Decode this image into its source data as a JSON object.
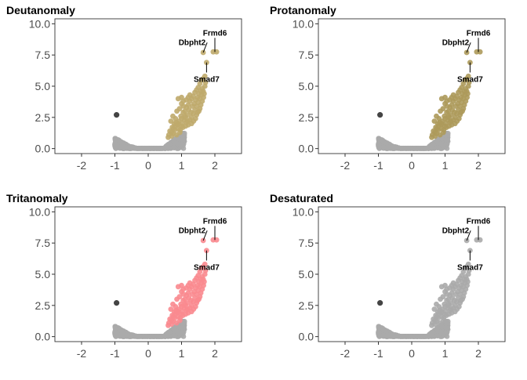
{
  "chart_data": [
    {
      "type": "scatter",
      "title": "Deutanomaly",
      "xlabel": "",
      "ylabel": "",
      "xlim": [
        -2.8,
        2.8
      ],
      "ylim": [
        0,
        10
      ],
      "x_ticks": [
        -2,
        -1,
        0,
        1,
        2
      ],
      "x_tick_labels": [
        "-2",
        "-1",
        "0",
        "1",
        "2"
      ],
      "y_ticks": [
        0,
        2.5,
        5,
        7.5,
        10
      ],
      "y_tick_labels": [
        "0.0",
        "2.5",
        "5.0",
        "7.5",
        "10.0"
      ],
      "grid": false,
      "colors": {
        "significant": "#bfaa6b",
        "background": "#aaaaaa",
        "outlier": "#444444"
      },
      "labels": [
        {
          "text": "Frmd6",
          "x": 2.0,
          "y": 7.75,
          "label_x": 2.0,
          "label_y": 9.25
        },
        {
          "text": "Dbpht2",
          "x": 1.65,
          "y": 7.7,
          "label_x": 0.78,
          "label_y": 8.5
        },
        {
          "text": "Smad7",
          "x": 1.75,
          "y": 6.9,
          "label_x": 1.75,
          "label_y": 6.1
        }
      ]
    },
    {
      "type": "scatter",
      "title": "Protanomaly",
      "xlabel": "",
      "ylabel": "",
      "xlim": [
        -2.8,
        2.8
      ],
      "ylim": [
        0,
        10
      ],
      "x_ticks": [
        -2,
        -1,
        0,
        1,
        2
      ],
      "x_tick_labels": [
        "-2",
        "-1",
        "0",
        "1",
        "2"
      ],
      "y_ticks": [
        0,
        2.5,
        5,
        7.5,
        10
      ],
      "y_tick_labels": [
        "0.0",
        "2.5",
        "5.0",
        "7.5",
        "10.0"
      ],
      "grid": false,
      "colors": {
        "significant": "#ad9a5b",
        "background": "#aaaaaa",
        "outlier": "#444444"
      },
      "labels": [
        {
          "text": "Frmd6",
          "x": 2.0,
          "y": 7.75,
          "label_x": 2.0,
          "label_y": 9.25
        },
        {
          "text": "Dbpht2",
          "x": 1.65,
          "y": 7.7,
          "label_x": 0.78,
          "label_y": 8.5
        },
        {
          "text": "Smad7",
          "x": 1.75,
          "y": 6.9,
          "label_x": 1.75,
          "label_y": 6.1
        }
      ]
    },
    {
      "type": "scatter",
      "title": "Tritanomaly",
      "xlabel": "",
      "ylabel": "",
      "xlim": [
        -2.8,
        2.8
      ],
      "ylim": [
        0,
        10
      ],
      "x_ticks": [
        -2,
        -1,
        0,
        1,
        2
      ],
      "x_tick_labels": [
        "-2",
        "-1",
        "0",
        "1",
        "2"
      ],
      "y_ticks": [
        0,
        2.5,
        5,
        7.5,
        10
      ],
      "y_tick_labels": [
        "0.0",
        "2.5",
        "5.0",
        "7.5",
        "10.0"
      ],
      "grid": false,
      "colors": {
        "significant": "#f98a8f",
        "background": "#aaaaaa",
        "outlier": "#444444"
      },
      "labels": [
        {
          "text": "Frmd6",
          "x": 2.0,
          "y": 7.75,
          "label_x": 2.0,
          "label_y": 9.25
        },
        {
          "text": "Dbpht2",
          "x": 1.65,
          "y": 7.7,
          "label_x": 0.78,
          "label_y": 8.5
        },
        {
          "text": "Smad7",
          "x": 1.75,
          "y": 6.9,
          "label_x": 1.75,
          "label_y": 6.1
        }
      ]
    },
    {
      "type": "scatter",
      "title": "Desaturated",
      "xlabel": "",
      "ylabel": "",
      "xlim": [
        -2.8,
        2.8
      ],
      "ylim": [
        0,
        10
      ],
      "x_ticks": [
        -2,
        -1,
        0,
        1,
        2
      ],
      "x_tick_labels": [
        "-2",
        "-1",
        "0",
        "1",
        "2"
      ],
      "y_ticks": [
        0,
        2.5,
        5,
        7.5,
        10
      ],
      "y_tick_labels": [
        "0.0",
        "2.5",
        "5.0",
        "7.5",
        "10.0"
      ],
      "grid": false,
      "colors": {
        "significant": "#aaaaaa",
        "background": "#aaaaaa",
        "outlier": "#444444"
      },
      "labels": [
        {
          "text": "Frmd6",
          "x": 2.0,
          "y": 7.75,
          "label_x": 2.0,
          "label_y": 9.25
        },
        {
          "text": "Dbpht2",
          "x": 1.65,
          "y": 7.7,
          "label_x": 0.78,
          "label_y": 8.5
        },
        {
          "text": "Smad7",
          "x": 1.75,
          "y": 6.9,
          "label_x": 1.75,
          "label_y": 6.1
        }
      ]
    }
  ],
  "points": {
    "outlier": [
      [
        -0.95,
        2.7
      ]
    ],
    "significant": [
      [
        0.6,
        0.9
      ],
      [
        0.7,
        1.0
      ],
      [
        0.75,
        1.2
      ],
      [
        0.8,
        1.5
      ],
      [
        0.85,
        1.1
      ],
      [
        0.9,
        1.6
      ],
      [
        0.95,
        1.3
      ],
      [
        1.0,
        1.8
      ],
      [
        0.65,
        1.4
      ],
      [
        0.72,
        1.7
      ],
      [
        0.78,
        2.0
      ],
      [
        0.82,
        2.4
      ],
      [
        0.88,
        1.9
      ],
      [
        0.92,
        2.2
      ],
      [
        0.98,
        2.6
      ],
      [
        1.02,
        2.0
      ],
      [
        1.05,
        2.9
      ],
      [
        1.08,
        2.3
      ],
      [
        1.1,
        3.0
      ],
      [
        1.12,
        2.5
      ],
      [
        1.15,
        3.3
      ],
      [
        1.18,
        2.7
      ],
      [
        1.2,
        3.5
      ],
      [
        1.22,
        3.1
      ],
      [
        1.25,
        3.8
      ],
      [
        1.28,
        2.9
      ],
      [
        1.3,
        4.0
      ],
      [
        1.32,
        3.4
      ],
      [
        1.35,
        4.2
      ],
      [
        1.38,
        3.6
      ],
      [
        1.4,
        4.5
      ],
      [
        1.42,
        3.9
      ],
      [
        1.45,
        4.7
      ],
      [
        1.48,
        4.1
      ],
      [
        1.5,
        4.9
      ],
      [
        1.52,
        4.4
      ],
      [
        1.55,
        5.2
      ],
      [
        1.58,
        4.6
      ],
      [
        1.6,
        5.5
      ],
      [
        1.62,
        4.8
      ],
      [
        1.65,
        5.6
      ],
      [
        1.7,
        5.8
      ],
      [
        1.75,
        6.9
      ],
      [
        1.65,
        7.7
      ],
      [
        1.95,
        7.75
      ],
      [
        2.05,
        7.75
      ],
      [
        0.68,
        2.2
      ],
      [
        0.74,
        2.6
      ],
      [
        0.86,
        3.0
      ],
      [
        0.94,
        3.2
      ],
      [
        1.0,
        3.6
      ],
      [
        1.06,
        3.4
      ],
      [
        1.14,
        3.9
      ],
      [
        1.2,
        4.1
      ],
      [
        0.9,
        4.0
      ],
      [
        1.0,
        4.1
      ],
      [
        1.05,
        3.8
      ],
      [
        1.25,
        4.3
      ],
      [
        1.3,
        2.5
      ],
      [
        1.35,
        2.8
      ],
      [
        1.4,
        3.1
      ],
      [
        1.45,
        3.4
      ],
      [
        1.5,
        3.7
      ],
      [
        1.55,
        4.0
      ],
      [
        1.6,
        4.3
      ],
      [
        1.65,
        4.6
      ],
      [
        1.7,
        5.0
      ],
      [
        1.72,
        5.3
      ],
      [
        1.55,
        3.2
      ],
      [
        1.45,
        2.7
      ],
      [
        0.7,
        1.3
      ],
      [
        0.8,
        1.8
      ],
      [
        0.9,
        2.0
      ],
      [
        1.0,
        2.4
      ],
      [
        1.1,
        2.6
      ],
      [
        1.15,
        2.1
      ],
      [
        1.25,
        2.3
      ],
      [
        1.2,
        1.9
      ],
      [
        0.62,
        1.1
      ],
      [
        0.76,
        1.6
      ],
      [
        0.84,
        2.1
      ],
      [
        0.96,
        1.5
      ],
      [
        1.04,
        1.7
      ],
      [
        1.12,
        1.8
      ],
      [
        1.18,
        2.2
      ],
      [
        1.3,
        2.0
      ],
      [
        1.36,
        2.2
      ],
      [
        1.42,
        2.4
      ],
      [
        1.48,
        2.9
      ],
      [
        1.52,
        3.0
      ],
      [
        1.58,
        3.5
      ],
      [
        1.62,
        3.8
      ],
      [
        1.66,
        4.1
      ],
      [
        1.68,
        4.4
      ]
    ]
  }
}
